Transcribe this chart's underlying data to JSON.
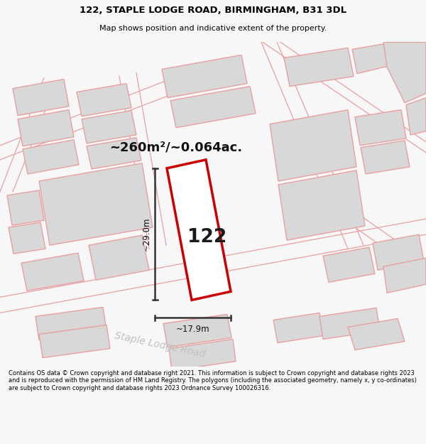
{
  "title_line1": "122, STAPLE LODGE ROAD, BIRMINGHAM, B31 3DL",
  "title_line2": "Map shows position and indicative extent of the property.",
  "area_label": "~260m²/~0.064ac.",
  "number_label": "122",
  "width_label": "~17.9m",
  "height_label": "~29.0m",
  "road_label": "Staple Lodge Road",
  "footer_text": "Contains OS data © Crown copyright and database right 2021. This information is subject to Crown copyright and database rights 2023 and is reproduced with the permission of HM Land Registry. The polygons (including the associated geometry, namely x, y co-ordinates) are subject to Crown copyright and database rights 2023 Ordnance Survey 100026316.",
  "bg_color": "#f7f7f7",
  "map_bg_color": "#ffffff",
  "plot_color": "#d8d8d8",
  "border_color": "#e8a0a0",
  "highlight_color": "#cc0000",
  "dim_line_color": "#333333",
  "title_color": "#000000",
  "footer_color": "#000000"
}
